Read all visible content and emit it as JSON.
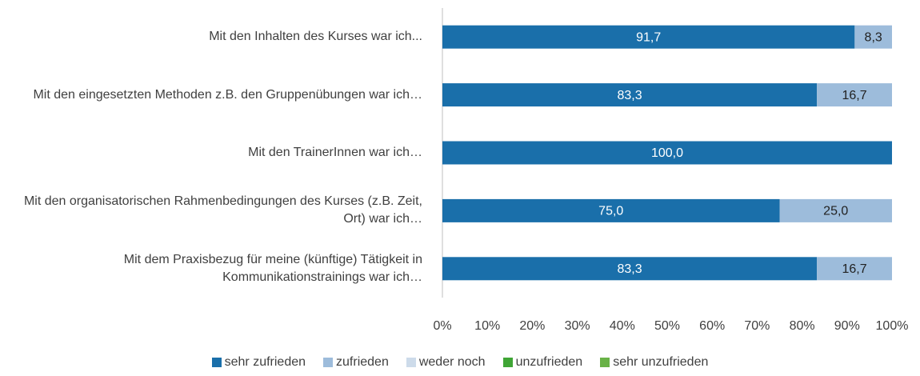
{
  "chart_data": {
    "type": "stacked_barh",
    "categories": [
      "Mit den Inhalten des Kurses war ich...",
      "Mit den eingesetzten Methoden z.B. den Gruppenübungen war ich…",
      "Mit den TrainerInnen war ich…",
      "Mit den organisatorischen Rahmenbedingungen des Kurses (z.B. Zeit, Ort) war ich…",
      "Mit dem Praxisbezug für meine (künftige) Tätigkeit in Kommunikationstrainings war ich…"
    ],
    "series": [
      {
        "name": "sehr zufrieden",
        "color": "#1a6faa",
        "label_color": "#ffffff",
        "values": [
          91.7,
          83.3,
          100,
          75,
          83.3
        ],
        "value_labels": [
          "91,7",
          "83,3",
          "100,0",
          "75,0",
          "83,3"
        ]
      },
      {
        "name": "zufrieden",
        "color": "#9dbcdb",
        "label_color": "#222222",
        "values": [
          8.3,
          16.7,
          0,
          25,
          16.7
        ],
        "value_labels": [
          "8,3",
          "16,7",
          null,
          "25,0",
          "16,7"
        ]
      },
      {
        "name": "weder noch",
        "color": "#cddbea",
        "values": [
          0,
          0,
          0,
          0,
          0
        ]
      },
      {
        "name": "unzufrieden",
        "color": "#3fa535",
        "values": [
          0,
          0,
          0,
          0,
          0
        ]
      },
      {
        "name": "sehr unzufrieden",
        "color": "#69b247",
        "values": [
          0,
          0,
          0,
          0,
          0
        ]
      }
    ],
    "xlim": [
      0,
      100
    ],
    "xticks": [
      {
        "value": 0,
        "label": "0%"
      },
      {
        "value": 10,
        "label": "10%"
      },
      {
        "value": 20,
        "label": "20%"
      },
      {
        "value": 30,
        "label": "30%"
      },
      {
        "value": 40,
        "label": "40%"
      },
      {
        "value": 50,
        "label": "50%"
      },
      {
        "value": 60,
        "label": "60%"
      },
      {
        "value": 70,
        "label": "70%"
      },
      {
        "value": 80,
        "label": "80%"
      },
      {
        "value": 90,
        "label": "90%"
      },
      {
        "value": 100,
        "label": "100%"
      }
    ],
    "legend": "bottom"
  }
}
